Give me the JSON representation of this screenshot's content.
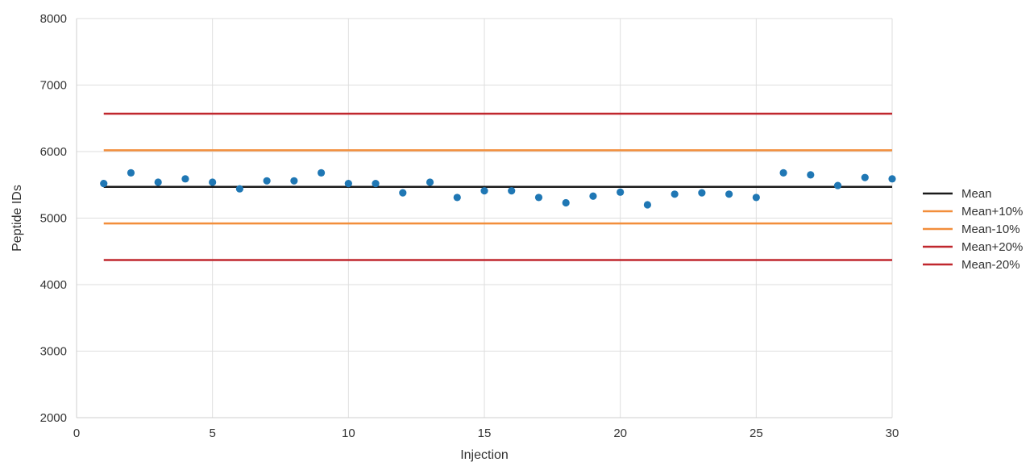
{
  "chart_data": {
    "type": "scatter",
    "title": "",
    "xlabel": "Injection",
    "ylabel": "Peptide IDs",
    "xlim": [
      0,
      30
    ],
    "ylim": [
      2000,
      8000
    ],
    "xticks": [
      0,
      5,
      10,
      15,
      20,
      25,
      30
    ],
    "yticks": [
      2000,
      3000,
      4000,
      5000,
      6000,
      7000,
      8000
    ],
    "grid": true,
    "legend_position": "right",
    "points": {
      "color": "#1f77b4",
      "x": [
        1,
        2,
        3,
        4,
        5,
        6,
        7,
        8,
        9,
        10,
        11,
        12,
        13,
        14,
        15,
        16,
        17,
        18,
        19,
        20,
        21,
        22,
        23,
        24,
        25,
        26,
        27,
        28,
        29,
        30
      ],
      "y": [
        5520,
        5680,
        5540,
        5590,
        5540,
        5440,
        5560,
        5560,
        5680,
        5520,
        5520,
        5380,
        5540,
        5310,
        5410,
        5410,
        5310,
        5230,
        5330,
        5390,
        5200,
        5360,
        5380,
        5360,
        5310,
        5680,
        5650,
        5490,
        5610,
        5590
      ]
    },
    "series": [
      {
        "name": "Mean",
        "type": "line",
        "x": [
          1,
          30
        ],
        "value": 5470,
        "color": "#1a1a1a"
      },
      {
        "name": "Mean+10%",
        "type": "line",
        "x": [
          1,
          30
        ],
        "value": 6020,
        "color": "#f28e3b"
      },
      {
        "name": "Mean-10%",
        "type": "line",
        "x": [
          1,
          30
        ],
        "value": 4920,
        "color": "#f28e3b"
      },
      {
        "name": "Mean+20%",
        "type": "line",
        "x": [
          1,
          30
        ],
        "value": 6570,
        "color": "#c0272d"
      },
      {
        "name": "Mean-20%",
        "type": "line",
        "x": [
          1,
          30
        ],
        "value": 4370,
        "color": "#c0272d"
      }
    ]
  }
}
